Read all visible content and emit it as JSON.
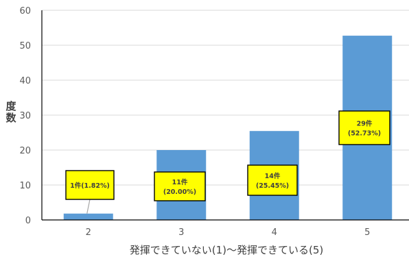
{
  "chart_data": {
    "type": "bar",
    "categories": [
      "2",
      "3",
      "4",
      "5"
    ],
    "values": [
      1,
      11,
      14,
      29
    ],
    "plotted_values": [
      1.82,
      20.0,
      25.45,
      52.73
    ],
    "ylim": [
      0,
      60
    ],
    "yticks": [
      "0",
      "10",
      "20",
      "30",
      "40",
      "50",
      "60"
    ],
    "xlabel": "発揮できていない(1)～発揮できている(5)",
    "ylabel": "度数",
    "bar_color": "#5b9bd5",
    "callout_color": "#ffff00",
    "data_labels": [
      {
        "line1": "1件(1.82%)",
        "line2": ""
      },
      {
        "line1": "11件",
        "line2": "(20.00%)"
      },
      {
        "line1": "14件",
        "line2": "(25.45%)"
      },
      {
        "line1": "29件",
        "line2": "(52.73%)"
      }
    ],
    "grid": true,
    "legend": "none"
  }
}
